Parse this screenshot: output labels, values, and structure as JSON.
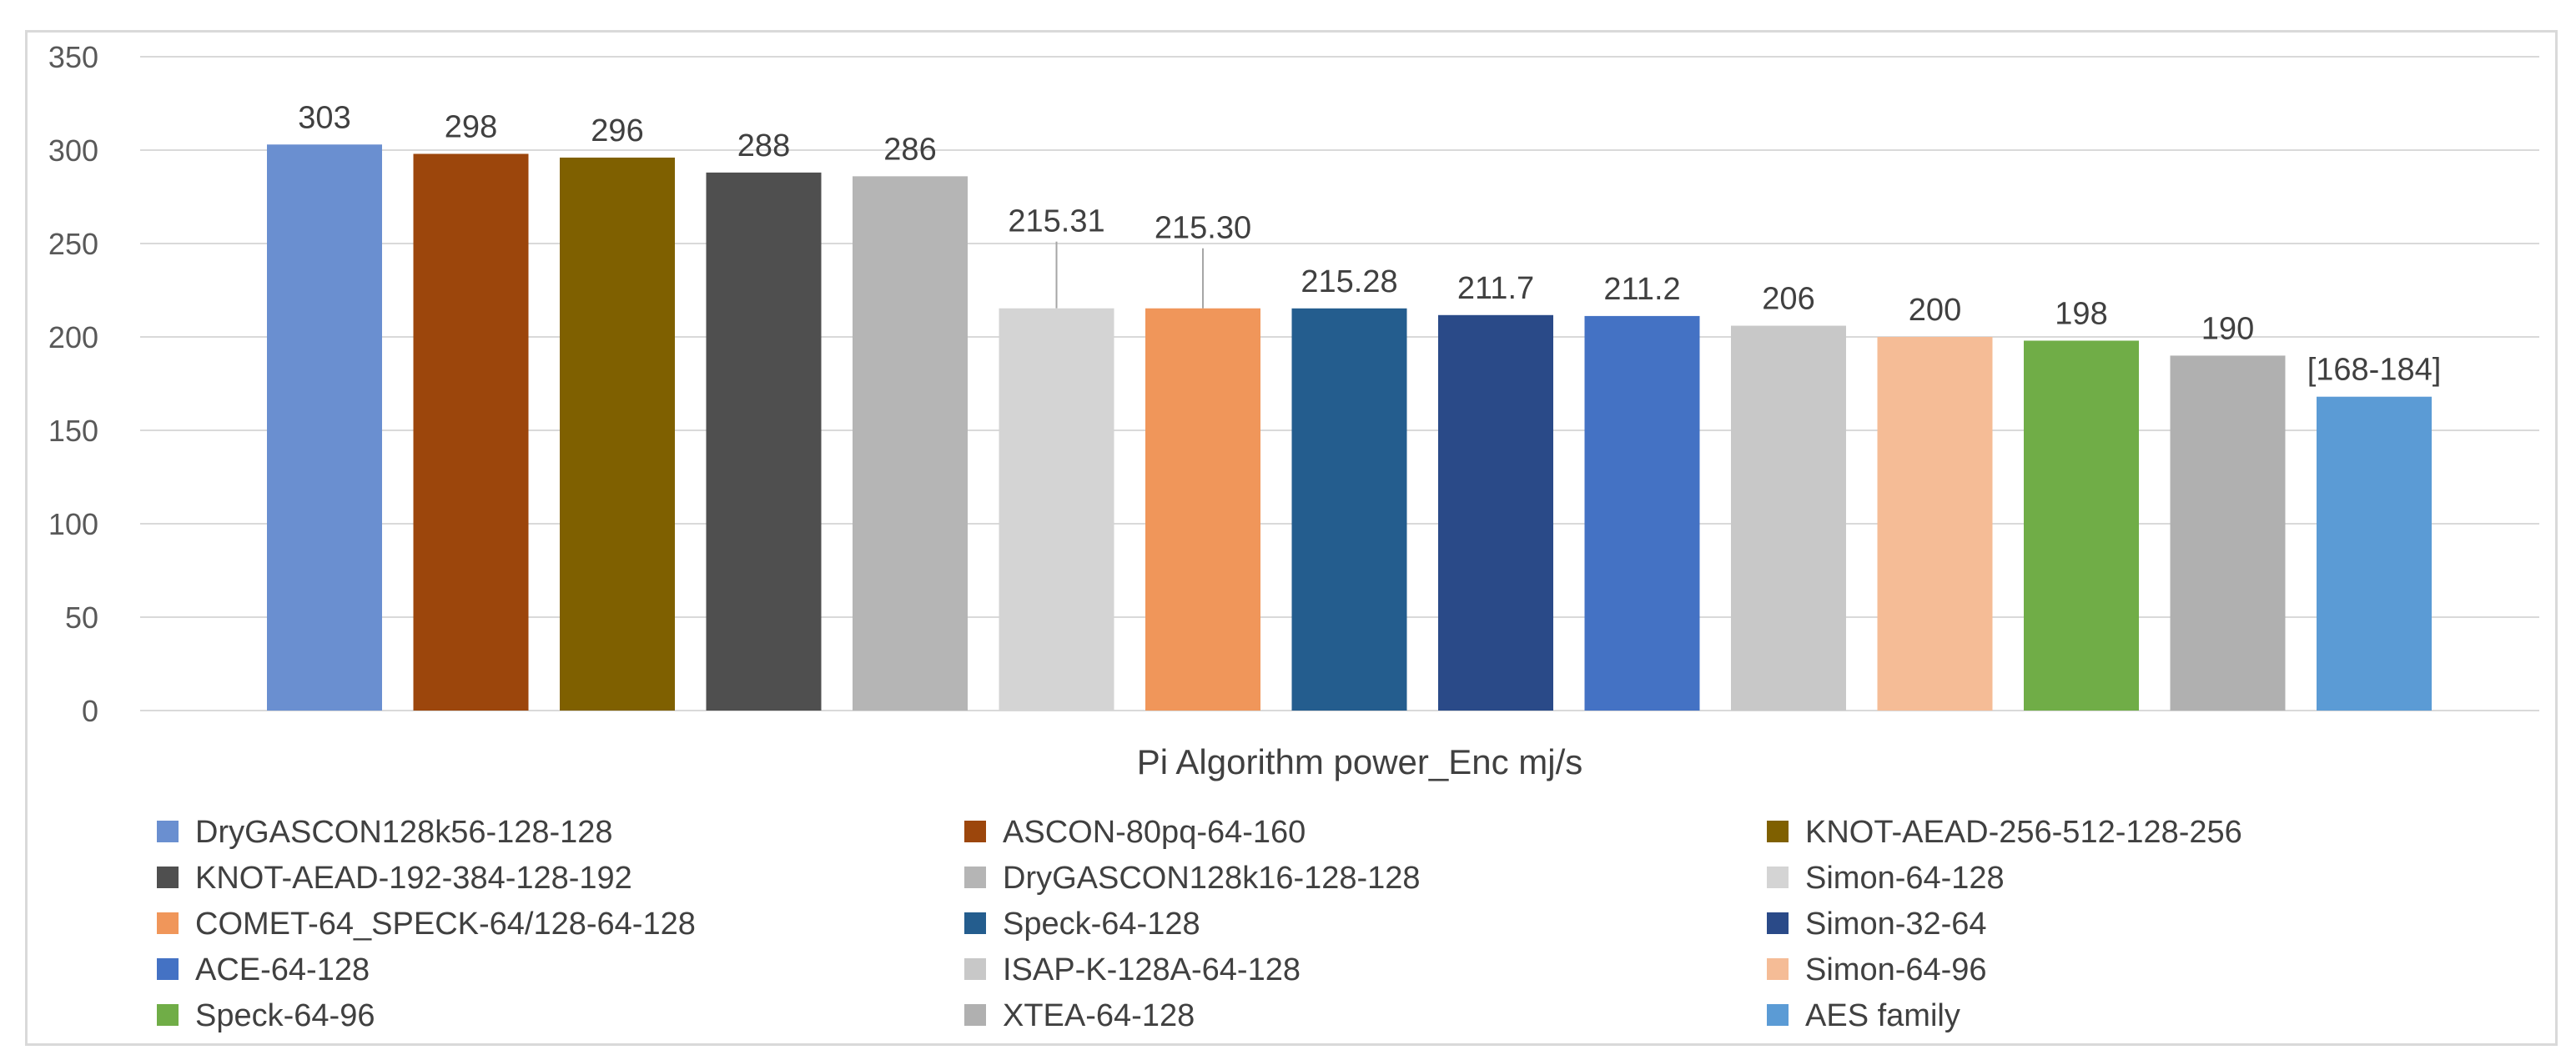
{
  "chart_data": {
    "type": "bar",
    "title": "",
    "xlabel": "Pi Algorithm power_Enc mj/s",
    "ylabel": "",
    "ylim": [
      0,
      350
    ],
    "yticks": [
      0,
      50,
      100,
      150,
      200,
      250,
      300,
      350
    ],
    "grid": true,
    "legend_position": "bottom",
    "categories": [
      "DryGASCON128k56-128-128",
      "ASCON-80pq-64-160",
      "KNOT-AEAD-256-512-128-256",
      "KNOT-AEAD-192-384-128-192",
      "DryGASCON128k16-128-128",
      "Simon-64-128",
      "COMET-64_SPECK-64/128-64-128",
      "Speck-64-128",
      "Simon-32-64",
      "ACE-64-128",
      "ISAP-K-128A-64-128",
      "Simon-64-96",
      "Speck-64-96",
      "XTEA-64-128",
      "AES family"
    ],
    "values": [
      303,
      298,
      296,
      288,
      286,
      215.31,
      215.3,
      215.28,
      211.7,
      211.2,
      206,
      200,
      198,
      190,
      168
    ],
    "data_labels": [
      "303",
      "298",
      "296",
      "288",
      "286",
      "215.31",
      "215.30",
      "215.28",
      "211.7",
      "211.2",
      "206",
      "200",
      "198",
      "190",
      "[168-184]"
    ],
    "colors": [
      "#6a8fd0",
      "#9c460c",
      "#7f6000",
      "#4f4f4f",
      "#b5b5b5",
      "#d4d4d4",
      "#f0965a",
      "#245d8e",
      "#2a4a88",
      "#4472c4",
      "#c8c8c8",
      "#f5bc96",
      "#70ad47",
      "#b0b0b0",
      "#5b9bd5"
    ],
    "leader_lines": [
      5,
      6
    ]
  }
}
